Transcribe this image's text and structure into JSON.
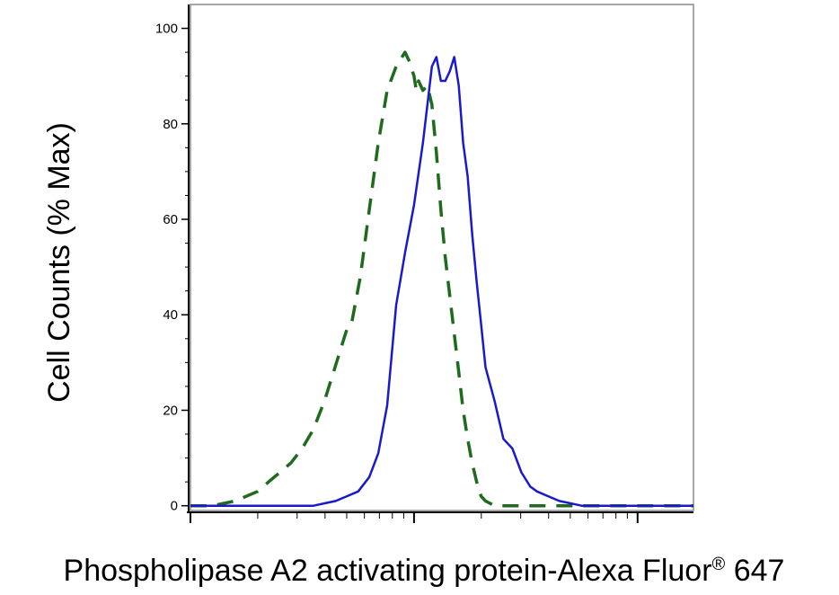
{
  "chart_data": {
    "type": "line",
    "title": "",
    "xlabel": "Phospholipase A2 activating protein-Alexa Fluor",
    "xlabel_sup": "®",
    "xlabel_suffix": " 647",
    "ylabel": "Cell Counts (% Max)",
    "x_scale": "log",
    "xlim": [
      -1,
      1.25
    ],
    "ylim": [
      -1,
      105
    ],
    "yticks": [
      0,
      20,
      40,
      60,
      80,
      100
    ],
    "ytick_labels": [
      "0",
      "20",
      "40",
      "60",
      "80",
      "100"
    ],
    "grid": false,
    "legend": "none",
    "series": [
      {
        "color": "#1e6b1e",
        "style": "dashed",
        "x": [
          -1.0,
          -0.9,
          -0.8,
          -0.7,
          -0.65,
          -0.6,
          -0.55,
          -0.5,
          -0.45,
          -0.4,
          -0.36,
          -0.32,
          -0.3,
          -0.28,
          -0.24,
          -0.2,
          -0.16,
          -0.12,
          -0.08,
          -0.04,
          -0.02,
          0.0,
          0.01,
          0.02,
          0.04,
          0.06,
          0.08,
          0.1,
          0.12,
          0.14,
          0.16,
          0.18,
          0.2,
          0.22,
          0.24,
          0.26,
          0.28,
          0.3,
          0.32,
          0.34,
          0.36,
          0.4,
          0.44,
          0.48,
          0.52,
          0.56,
          1.25
        ],
        "y": [
          0,
          0,
          1,
          3,
          5,
          7,
          9,
          12,
          16,
          22,
          28,
          34,
          37,
          38,
          48,
          62,
          76,
          87,
          92,
          95,
          93,
          90,
          87,
          89,
          87,
          88,
          84,
          74,
          62,
          52,
          44,
          36,
          28,
          20,
          14,
          9,
          5,
          2,
          1,
          0.5,
          0,
          0,
          0,
          0,
          0,
          0,
          0
        ]
      },
      {
        "color": "#1a1acc",
        "style": "solid",
        "x": [
          -1.0,
          -0.8,
          -0.6,
          -0.45,
          -0.4,
          -0.35,
          -0.3,
          -0.25,
          -0.2,
          -0.16,
          -0.12,
          -0.08,
          -0.04,
          0.0,
          0.04,
          0.08,
          0.1,
          0.12,
          0.14,
          0.16,
          0.18,
          0.2,
          0.22,
          0.24,
          0.26,
          0.28,
          0.3,
          0.32,
          0.36,
          0.4,
          0.44,
          0.48,
          0.52,
          0.55,
          0.6,
          0.65,
          0.7,
          0.75,
          0.85,
          1.0,
          1.25
        ],
        "y": [
          0,
          0,
          0,
          0,
          0.5,
          1,
          2,
          3,
          6,
          11,
          21,
          42,
          53,
          63,
          76,
          92,
          94,
          89,
          89,
          91,
          94,
          88,
          76,
          69,
          57,
          47,
          38,
          29,
          22,
          14,
          12,
          7,
          4,
          3,
          2,
          1,
          0.5,
          0,
          0,
          0,
          0
        ]
      }
    ]
  }
}
